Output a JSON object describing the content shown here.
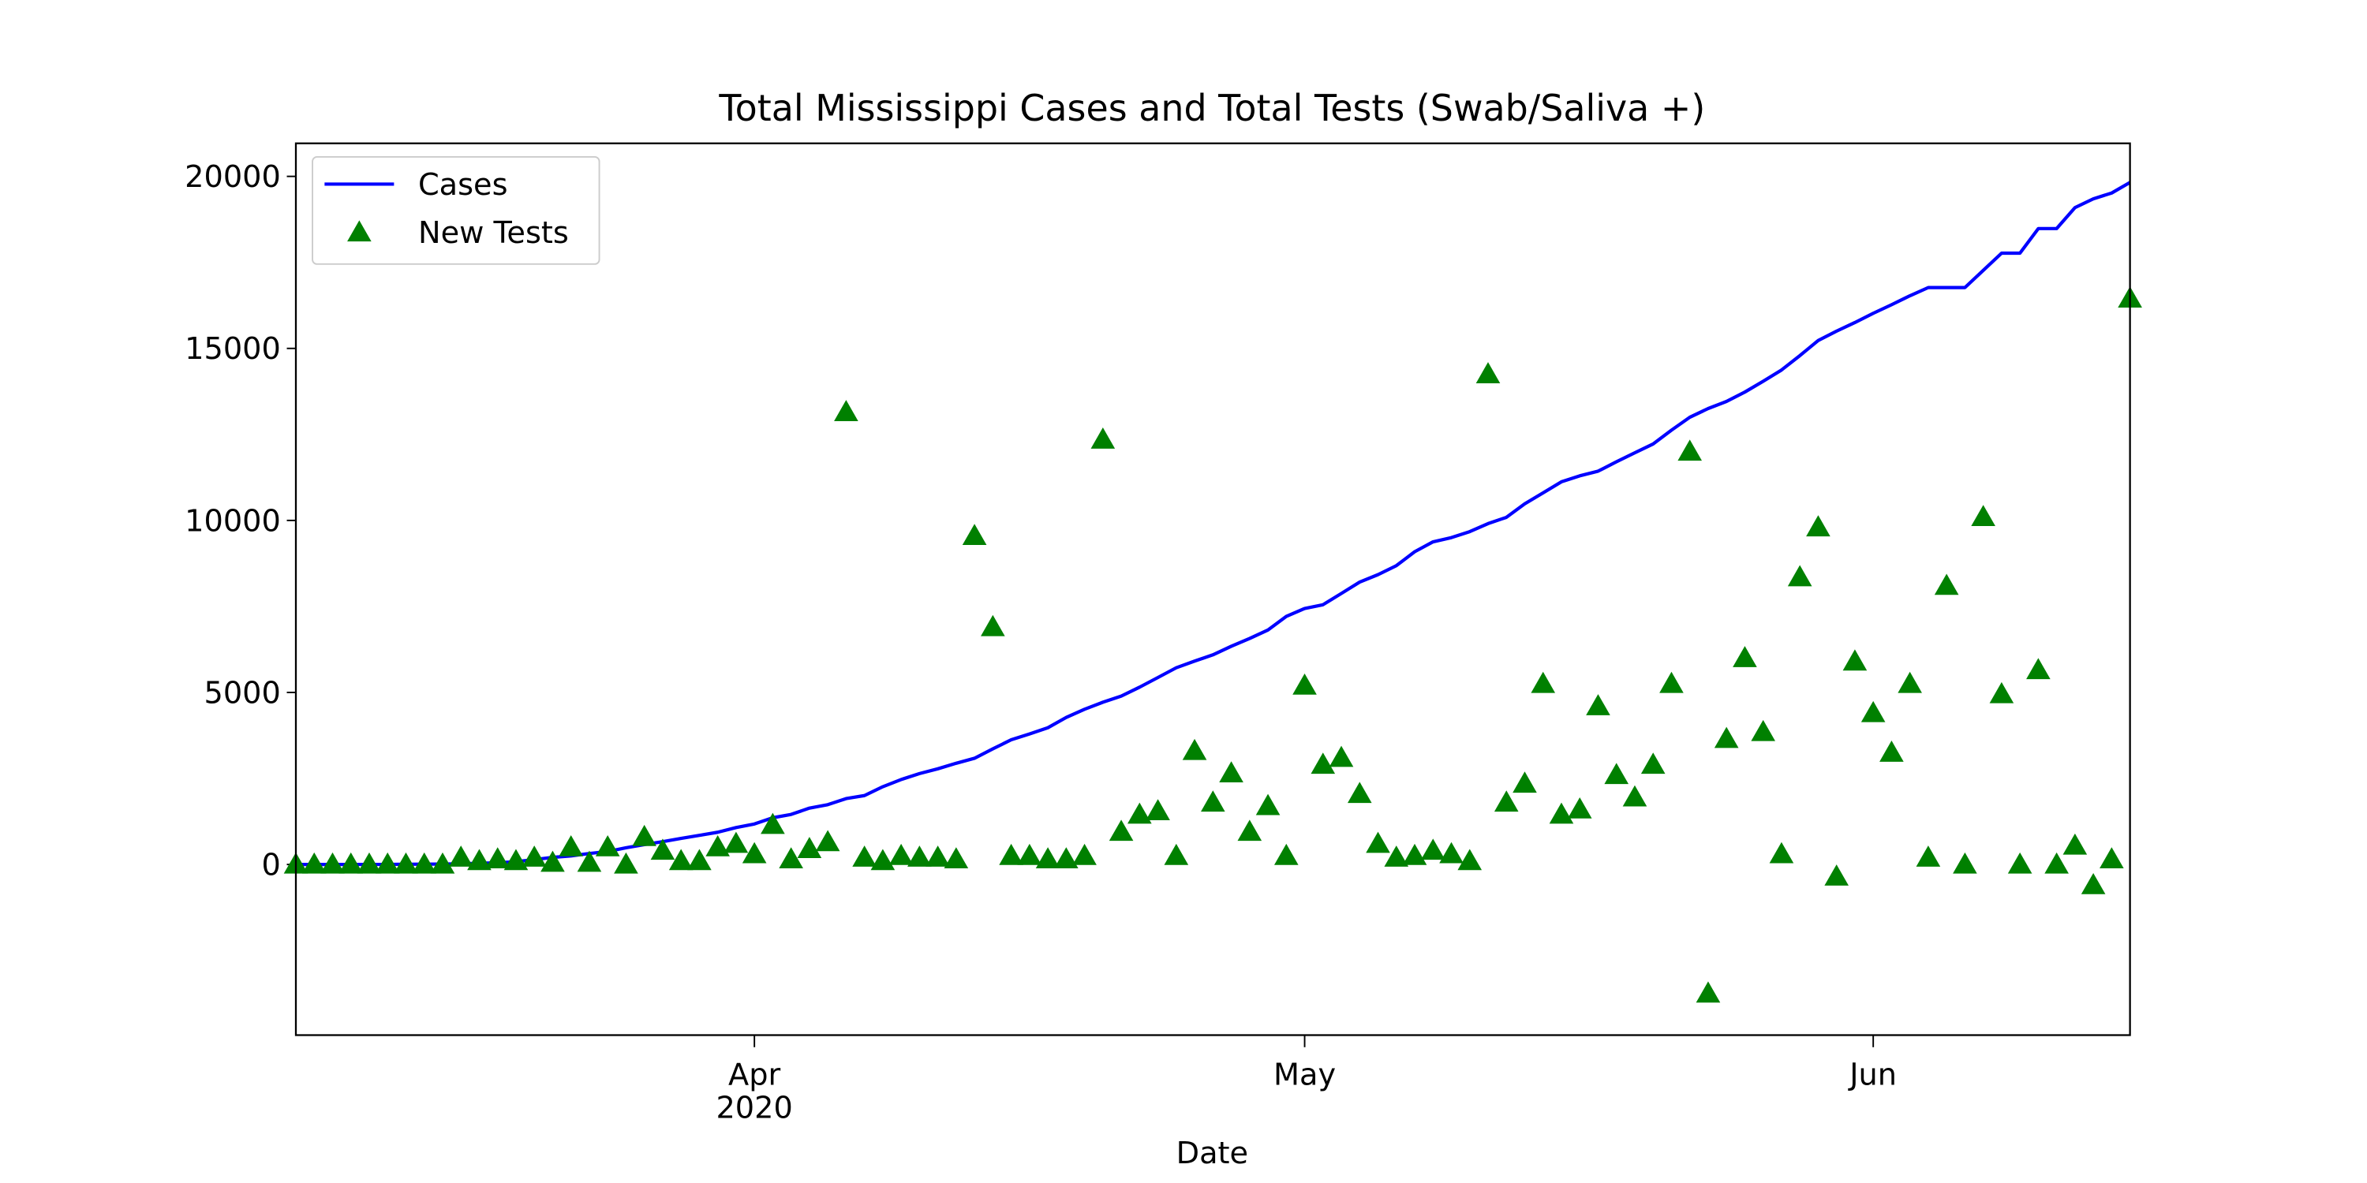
{
  "chart_data": {
    "type": "line-scatter",
    "title": "Total Mississippi Cases and Total Tests (Swab/Saliva +)",
    "x_label": "Date",
    "x": [
      "2020-03-07",
      "2020-03-08",
      "2020-03-09",
      "2020-03-10",
      "2020-03-11",
      "2020-03-12",
      "2020-03-13",
      "2020-03-14",
      "2020-03-15",
      "2020-03-16",
      "2020-03-17",
      "2020-03-18",
      "2020-03-19",
      "2020-03-20",
      "2020-03-21",
      "2020-03-22",
      "2020-03-23",
      "2020-03-24",
      "2020-03-25",
      "2020-03-26",
      "2020-03-27",
      "2020-03-28",
      "2020-03-29",
      "2020-03-30",
      "2020-03-31",
      "2020-04-01",
      "2020-04-02",
      "2020-04-03",
      "2020-04-04",
      "2020-04-05",
      "2020-04-06",
      "2020-04-07",
      "2020-04-08",
      "2020-04-09",
      "2020-04-10",
      "2020-04-11",
      "2020-04-12",
      "2020-04-13",
      "2020-04-14",
      "2020-04-15",
      "2020-04-16",
      "2020-04-17",
      "2020-04-18",
      "2020-04-19",
      "2020-04-20",
      "2020-04-21",
      "2020-04-22",
      "2020-04-23",
      "2020-04-24",
      "2020-04-25",
      "2020-04-26",
      "2020-04-27",
      "2020-04-28",
      "2020-04-29",
      "2020-04-30",
      "2020-05-01",
      "2020-05-02",
      "2020-05-03",
      "2020-05-04",
      "2020-05-05",
      "2020-05-06",
      "2020-05-07",
      "2020-05-08",
      "2020-05-09",
      "2020-05-10",
      "2020-05-11",
      "2020-05-12",
      "2020-05-13",
      "2020-05-14",
      "2020-05-15",
      "2020-05-16",
      "2020-05-17",
      "2020-05-18",
      "2020-05-19",
      "2020-05-20",
      "2020-05-21",
      "2020-05-22",
      "2020-05-23",
      "2020-05-24",
      "2020-05-25",
      "2020-05-26",
      "2020-05-27",
      "2020-05-28",
      "2020-05-29",
      "2020-05-30",
      "2020-05-31",
      "2020-06-01",
      "2020-06-02",
      "2020-06-03",
      "2020-06-04",
      "2020-06-05",
      "2020-06-06",
      "2020-06-07",
      "2020-06-08",
      "2020-06-09",
      "2020-06-10",
      "2020-06-11",
      "2020-06-12",
      "2020-06-13",
      "2020-06-14",
      "2020-06-15"
    ],
    "series": [
      {
        "name": "Cases",
        "kind": "line",
        "color": "#0000ff",
        "values": [
          0,
          0,
          0,
          0,
          1,
          1,
          6,
          10,
          12,
          21,
          34,
          50,
          80,
          140,
          207,
          249,
          320,
          377,
          485,
          579,
          663,
          758,
          847,
          937,
          1073,
          1177,
          1358,
          1455,
          1638,
          1738,
          1915,
          2003,
          2260,
          2469,
          2642,
          2781,
          2942,
          3087,
          3360,
          3624,
          3793,
          3974,
          4274,
          4512,
          4716,
          4894,
          5153,
          5434,
          5718,
          5911,
          6094,
          6342,
          6569,
          6815,
          7212,
          7441,
          7550,
          7877,
          8207,
          8424,
          8686,
          9090,
          9378,
          9501,
          9674,
          9908,
          10090,
          10483,
          10801,
          11123,
          11296,
          11432,
          11704,
          11967,
          12222,
          12624,
          12999,
          13252,
          13458,
          13731,
          14044,
          14372,
          14790,
          15229,
          15501,
          15752,
          16020,
          16270,
          16530,
          16768,
          16768,
          16768,
          17268,
          17768,
          17768,
          18483,
          18483,
          19091,
          19348,
          19516,
          19825
        ]
      },
      {
        "name": "New Tests",
        "kind": "scatter",
        "color": "#008000",
        "values": [
          0,
          0,
          0,
          0,
          0,
          0,
          0,
          0,
          0,
          200,
          100,
          150,
          100,
          200,
          50,
          500,
          50,
          500,
          0,
          800,
          400,
          100,
          100,
          500,
          600,
          300,
          1150,
          150,
          450,
          650,
          13150,
          200,
          100,
          250,
          200,
          200,
          150,
          9550,
          6900,
          250,
          250,
          150,
          150,
          250,
          12350,
          950,
          1450,
          1550,
          250,
          3300,
          1800,
          2650,
          950,
          1700,
          250,
          5200,
          2900,
          3100,
          2050,
          600,
          200,
          250,
          400,
          300,
          100,
          14250,
          1800,
          2350,
          5250,
          1450,
          1600,
          4600,
          2600,
          1950,
          2900,
          5250,
          12000,
          -3750,
          3650,
          6000,
          3850,
          300,
          8350,
          9800,
          -350,
          5900,
          4400,
          3250,
          5250,
          200,
          8100,
          0,
          10100,
          4950,
          0,
          5650,
          0,
          550,
          -600,
          150,
          16450
        ]
      }
    ],
    "xlim": [
      "2020-03-07",
      "2020-06-15"
    ],
    "xticks": [
      {
        "value": "2020-04-01",
        "label": "Apr",
        "year": "2020"
      },
      {
        "value": "2020-05-01",
        "label": "May"
      },
      {
        "value": "2020-06-01",
        "label": "Jun"
      }
    ],
    "ylim": [
      -4960,
      20960
    ],
    "yticks": [
      0,
      5000,
      10000,
      15000,
      20000
    ],
    "grid": false,
    "legend": "upper left"
  }
}
